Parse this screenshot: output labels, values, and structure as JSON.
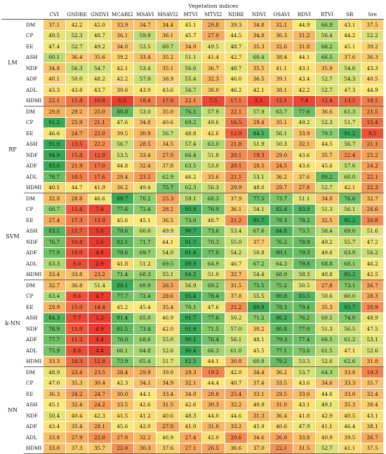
{
  "table": {
    "title": "Vegetation indices",
    "columns": [
      "CVI",
      "GNDRE",
      "GNDVI",
      "MCARI2",
      "MSAVI",
      "MSAVI2",
      "MTVI",
      "MTVI2",
      "NDRE",
      "NDVI",
      "OSAVI",
      "RDVI",
      "RTVI",
      "SR",
      "Sre"
    ],
    "groups": [
      {
        "model": "LM",
        "rows": [
          {
            "metric": "DM",
            "values": [
              "37.1",
              "42.2",
              "42.0",
              "33.9",
              "34.7",
              "34.4",
              "45.1",
              "29.8",
              "39.3",
              "34.8",
              "32.1",
              "44.9",
              "66.9",
              "43.1",
              "37.5"
            ]
          },
          {
            "metric": "CP",
            "values": [
              "49.5",
              "52.3",
              "48.7",
              "36.1",
              "59.9",
              "36.1",
              "45.7",
              "27.9",
              "44.5",
              "34.8",
              "36.3",
              "31.2",
              "56.4",
              "44.2",
              "52.2"
            ]
          },
          {
            "metric": "EE",
            "values": [
              "47.4",
              "52.7",
              "49.2",
              "34.0",
              "53.5",
              "60.7",
              "34.0",
              "49.5",
              "48.7",
              "35.3",
              "32.6",
              "31.8",
              "66.2",
              "45.1",
              "39.2"
            ]
          },
          {
            "metric": "ASH",
            "values": [
              "60.1",
              "36.4",
              "35.6",
              "39.2",
              "33.4",
              "35.2",
              "51.1",
              "41.4",
              "42.7",
              "60.4",
              "38.4",
              "44.1",
              "66.5",
              "37.6",
              "36.3"
            ]
          },
          {
            "metric": "NDF",
            "values": [
              "34.8",
              "56.3",
              "54.7",
              "42.1",
              "53.4",
              "35.1",
              "56.6",
              "36.7",
              "48.7",
              "35.5",
              "41.1",
              "43.1",
              "35.9",
              "54.6",
              "43.3"
            ]
          },
          {
            "metric": "ADF",
            "values": [
              "40.1",
              "50.0",
              "48.2",
              "42.2",
              "57.0",
              "38.9",
              "55.4",
              "32.3",
              "46.0",
              "36.5",
              "39.1",
              "43.4",
              "52.7",
              "54.3",
              "40.5"
            ]
          },
          {
            "metric": "ADL",
            "values": [
              "43.3",
              "43.8",
              "43.7",
              "39.6",
              "43.9",
              "43.6",
              "56.7",
              "38.0",
              "46.2",
              "42.1",
              "38.1",
              "42.2",
              "52.7",
              "47.3",
              "44.9"
            ]
          },
          {
            "metric": "HDMI",
            "values": [
              "22.1",
              "15.8",
              "10.8",
              "5.5",
              "18.4",
              "17.0",
              "22.1",
              "7.5",
              "17.1",
              "5.1",
              "12.1",
              "7.4",
              "12.4",
              "13.5",
              "18.5"
            ]
          }
        ]
      },
      {
        "model": "RF",
        "rows": [
          {
            "metric": "DM",
            "values": [
              "29.8",
              "29.2",
              "25.0",
              "80.8",
              "53.0",
              "35.0",
              "76.1",
              "57.9",
              "22.1",
              "57.9",
              "63.7",
              "77.6",
              "36.6",
              "61.3",
              "21.5"
            ]
          },
          {
            "metric": "CP",
            "values": [
              "91.2",
              "25.9",
              "21.1",
              "47.6",
              "34.8",
              "40.6",
              "69.2",
              "49.6",
              "16.5",
              "29.4",
              "35.1",
              "49.2",
              "52.3",
              "51.7",
              "15.4"
            ]
          },
          {
            "metric": "EE",
            "values": [
              "46.6",
              "24.7",
              "22.0",
              "39.5",
              "30.9",
              "56.7",
              "48.8",
              "42.6",
              "12.9",
              "84.5",
              "56.1",
              "33.9",
              "70.5",
              "91.2",
              "9.5"
            ]
          },
          {
            "metric": "ASH",
            "values": [
              "91.9",
              "13.5",
              "22.2",
              "56.7",
              "28.5",
              "34.5",
              "57.4",
              "63.0",
              "21.8",
              "51.9",
              "50.3",
              "32.1",
              "44.5",
              "56.7",
              "21.1"
            ]
          },
          {
            "metric": "NDF",
            "values": [
              "94.9",
              "15.8",
              "12.9",
              "53.5",
              "33.4",
              "27.0",
              "66.4",
              "51.8",
              "20.1",
              "19.3",
              "29.0",
              "43.6",
              "35.7",
              "22.4",
              "25.2"
            ]
          },
          {
            "metric": "ADF",
            "values": [
              "93.0",
              "21.9",
              "17.0",
              "44.8",
              "32.4",
              "37.8",
              "63.5",
              "53.0",
              "20.1",
              "28.5",
              "24.5",
              "43.6",
              "45.6",
              "57.6",
              "24.2"
            ]
          },
          {
            "metric": "ADL",
            "values": [
              "78.7",
              "18.5",
              "17.6",
              "29.4",
              "23.5",
              "62.9",
              "46.2",
              "33.6",
              "21.1",
              "53.1",
              "36.2",
              "37.6",
              "80.2",
              "60.0",
              "22.1"
            ]
          },
          {
            "metric": "HDMI",
            "values": [
              "40.1",
              "44.7",
              "41.9",
              "36.2",
              "49.4",
              "75.7",
              "62.3",
              "56.3",
              "29.9",
              "48.0",
              "29.7",
              "27.8",
              "52.7",
              "42.1",
              "22.3"
            ]
          }
        ]
      },
      {
        "model": "SVM",
        "rows": [
          {
            "metric": "DM",
            "values": [
              "32.8",
              "28.8",
              "46.6",
              "89.7",
              "70.2",
              "25.3",
              "59.1",
              "68.3",
              "37.9",
              "77.5",
              "73.7",
              "51.1",
              "34.0",
              "76.6",
              "32.7"
            ]
          },
          {
            "metric": "CP",
            "values": [
              "68.7",
              "11.4",
              "7.4",
              "77.6",
              "72.4",
              "28.2",
              "93.9",
              "76.9",
              "36.1",
              "54.1",
              "82.4",
              "83.9",
              "51.3",
              "56.1",
              "26.6"
            ]
          },
          {
            "metric": "EE",
            "values": [
              "27.4",
              "17.3",
              "13.9",
              "45.6",
              "45.1",
              "36.5",
              "73.0",
              "48.7",
              "21.2",
              "91.7",
              "78.3",
              "78.2",
              "32.5",
              "95.2",
              "20.8"
            ]
          },
          {
            "metric": "ASH",
            "values": [
              "83.1",
              "11.7",
              "5.0",
              "78.6",
              "60.0",
              "49.9",
              "90.7",
              "73.6",
              "53.4",
              "67.6",
              "84.8",
              "73.5",
              "58.4",
              "69.0",
              "51.6"
            ]
          },
          {
            "metric": "NDF",
            "values": [
              "76.7",
              "10.8",
              "2.6",
              "82.1",
              "71.7",
              "44.1",
              "91.7",
              "70.3",
              "55.0",
              "37.7",
              "76.2",
              "78.9",
              "49.2",
              "55.7",
              "47.2"
            ]
          },
          {
            "metric": "ADF",
            "values": [
              "77.9",
              "10.0",
              "4.0",
              "78.6",
              "69.7",
              "54.0",
              "91.4",
              "77.0",
              "54.2",
              "50.8",
              "80.1",
              "79.3",
              "49.6",
              "63.9",
              "56.2"
            ]
          },
          {
            "metric": "ADL",
            "values": [
              "63.3",
              "9.0",
              "2.9",
              "41.8",
              "51.2",
              "69.5",
              "89.9",
              "64.9",
              "46.7",
              "67.2",
              "64.3",
              "79.8",
              "68.8",
              "68.1",
              "46.2"
            ]
          },
          {
            "metric": "HDMI",
            "values": [
              "33.4",
              "33.8",
              "23.2",
              "71.4",
              "68.3",
              "55.1",
              "84.2",
              "51.0",
              "32.7",
              "54.4",
              "68.9",
              "58.3",
              "48.8",
              "85.2",
              "42.5"
            ]
          }
        ]
      },
      {
        "model": "k-NN",
        "rows": [
          {
            "metric": "DM",
            "values": [
              "32.7",
              "36.8",
              "51.4",
              "89.1",
              "69.9",
              "26.5",
              "56.9",
              "69.2",
              "31.5",
              "75.5",
              "75.2",
              "50.5",
              "27.8",
              "73.1",
              "26.7"
            ]
          },
          {
            "metric": "CP",
            "values": [
              "63.4",
              "9.6",
              "4.7",
              "77.7",
              "72.4",
              "28.6",
              "95.4",
              "78.4",
              "37.8",
              "55.5",
              "80.8",
              "83.5",
              "50.6",
              "60.0",
              "28.3"
            ]
          },
          {
            "metric": "EE",
            "values": [
              "29.9",
              "15.0",
              "14.4",
              "45.2",
              "45.4",
              "35.4",
              "70.1",
              "47.6",
              "21.2",
              "89.8",
              "78.3",
              "79.4",
              "35.3",
              "93.7",
              "20.9"
            ]
          },
          {
            "metric": "ASH",
            "values": [
              "84.3",
              "7.7",
              "5.3",
              "81.4",
              "65.0",
              "46.9",
              "91.7",
              "77.6",
              "50.2",
              "71.2",
              "86.2",
              "76.2",
              "60.5",
              "74.0",
              "48.9"
            ]
          },
          {
            "metric": "NDF",
            "values": [
              "78.9",
              "11.0",
              "4.9",
              "81.5",
              "73.4",
              "42.0",
              "91.9",
              "71.5",
              "57.0",
              "38.2",
              "80.8",
              "77.0",
              "51.3",
              "56.5",
              "47.5"
            ]
          },
          {
            "metric": "ADF",
            "values": [
              "77.7",
              "11.2",
              "4.4",
              "76.0",
              "68.6",
              "55.0",
              "90.1",
              "76.4",
              "56.1",
              "48.1",
              "79.3",
              "77.4",
              "66.5",
              "61.2",
              "53.1"
            ]
          },
          {
            "metric": "ADL",
            "values": [
              "75.9",
              "8.6",
              "4.4",
              "66.1",
              "64.8",
              "52.6",
              "90.4",
              "66.3",
              "61.0",
              "45.5",
              "77.1",
              "73.6",
              "61.5",
              "47.1",
              "52.6"
            ]
          },
          {
            "metric": "HDMI",
            "values": [
              "33.3",
              "14.3",
              "12.8",
              "73.9",
              "65.4",
              "51.7",
              "82.5",
              "44.1",
              "30.8",
              "60.8",
              "79.2",
              "53.5",
              "52.6",
              "62.6",
              "31.0"
            ]
          }
        ]
      },
      {
        "model": "NN",
        "rows": [
          {
            "metric": "DM",
            "values": [
              "48.9",
              "23.4",
              "23.5",
              "28.4",
              "29.9",
              "39.0",
              "29.3",
              "19.2",
              "42.0",
              "34.4",
              "36.2",
              "53.7",
              "64.3",
              "33.8",
              "19.3"
            ]
          },
          {
            "metric": "CP",
            "values": [
              "47.0",
              "35.3",
              "30.4",
              "42.3",
              "34.1",
              "34.9",
              "32.1",
              "44.4",
              "40.7",
              "37.4",
              "33.5",
              "43.6",
              "34.6",
              "33.3",
              "35.7"
            ]
          },
          {
            "metric": "EE",
            "values": [
              "36.3",
              "24.2",
              "24.7",
              "30.0",
              "44.1",
              "33.4",
              "34.0",
              "28.8",
              "25.4",
              "33.1",
              "29.5",
              "33.0",
              "44.6",
              "33.0",
              "32.4"
            ]
          },
          {
            "metric": "ASH",
            "values": [
              "45.1",
              "32.4",
              "24.2",
              "33.5",
              "42.6",
              "31.5",
              "42.6",
              "30.3",
              "32.2",
              "40.9",
              "31.0",
              "43.1",
              "49.1",
              "35.3",
              "38.4"
            ]
          },
          {
            "metric": "NDF",
            "values": [
              "50.4",
              "40.4",
              "42.3",
              "41.5",
              "41.2",
              "40.6",
              "48.3",
              "44.0",
              "44.6",
              "31.3",
              "36.4",
              "41.8",
              "42.9",
              "40.5",
              "43.1"
            ]
          },
          {
            "metric": "ADF",
            "values": [
              "43.4",
              "35.4",
              "28.1",
              "45.6",
              "42.0",
              "27.0",
              "41.0",
              "31.0",
              "33.2",
              "45.9",
              "40.6",
              "47.9",
              "41.1",
              "46.4",
              "38.1"
            ]
          },
          {
            "metric": "ADL",
            "values": [
              "33.8",
              "27.9",
              "22.0",
              "27.0",
              "32.2",
              "46.9",
              "27.4",
              "42.0",
              "20.6",
              "34.6",
              "26.0",
              "33.8",
              "40.9",
              "39.5",
              "26.7"
            ]
          },
          {
            "metric": "HDMI",
            "values": [
              "33.0",
              "37.3",
              "35.7",
              "22.0",
              "30.3",
              "37.6",
              "27.1",
              "26.5",
              "36.6",
              "37.0",
              "22.1",
              "31.5",
              "52.7",
              "41.1",
              "37.5"
            ]
          }
        ]
      }
    ]
  },
  "heat_colors": {
    "low": "#e93a2e",
    "mid_low": "#f5a25a",
    "mid": "#fbe97a",
    "mid_high": "#a7d672",
    "high": "#3aa957"
  }
}
